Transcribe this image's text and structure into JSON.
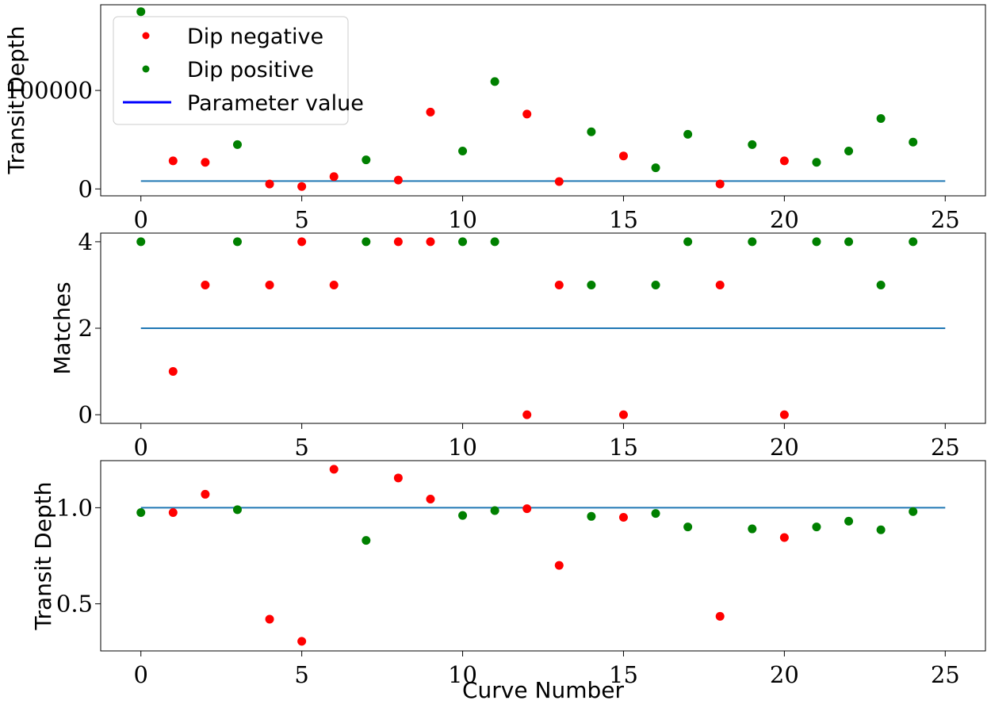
{
  "chart_data": [
    {
      "type": "scatter",
      "title": "",
      "xlabel": "",
      "ylabel": "Transit Depth",
      "xlim": [
        -1.25,
        26.25
      ],
      "ylim": [
        -7000,
        187000
      ],
      "xticks": [
        0,
        5,
        10,
        15,
        20,
        25
      ],
      "xtick_labels": [
        "0",
        "5",
        "10",
        "15",
        "20",
        "25"
      ],
      "yticks": [
        0,
        100000
      ],
      "ytick_labels": [
        "0",
        "100000"
      ],
      "series": [
        {
          "name": "Dip negative",
          "color": "#ff0000",
          "x": [
            1,
            2,
            4,
            5,
            6,
            8,
            9,
            12,
            13,
            15,
            18,
            20
          ],
          "y": [
            28500,
            27000,
            5000,
            2500,
            12500,
            9000,
            78000,
            76000,
            7500,
            33500,
            5000,
            28500
          ]
        },
        {
          "name": "Dip positive",
          "color": "#008000",
          "x": [
            0,
            3,
            7,
            10,
            11,
            14,
            16,
            17,
            19,
            21,
            22,
            23,
            24
          ],
          "y": [
            180000,
            45000,
            29500,
            38500,
            109000,
            58000,
            21500,
            55500,
            45000,
            27000,
            38500,
            71500,
            47500
          ]
        }
      ],
      "reference_line": {
        "name": "Parameter value",
        "x": [
          0,
          25
        ],
        "y": [
          8000,
          8000
        ],
        "color": "#1f77b4"
      },
      "legend": {
        "placement": "upper-left",
        "entries": [
          {
            "label": "Dip negative",
            "color": "#ff0000",
            "marker": "dot"
          },
          {
            "label": "Dip positive",
            "color": "#008000",
            "marker": "dot"
          },
          {
            "label": "Parameter value",
            "color": "#0000ff",
            "marker": "line"
          }
        ]
      }
    },
    {
      "type": "scatter",
      "title": "",
      "xlabel": "",
      "ylabel": "Matches",
      "xlim": [
        -1.25,
        26.25
      ],
      "ylim": [
        -0.2,
        4.2
      ],
      "xticks": [
        0,
        5,
        10,
        15,
        20,
        25
      ],
      "xtick_labels": [
        "0",
        "5",
        "10",
        "15",
        "20",
        "25"
      ],
      "yticks": [
        0,
        2,
        4
      ],
      "ytick_labels": [
        "0",
        "2",
        "4"
      ],
      "series": [
        {
          "name": "Dip negative",
          "color": "#ff0000",
          "x": [
            1,
            2,
            4,
            5,
            6,
            8,
            9,
            12,
            13,
            15,
            18,
            20
          ],
          "y": [
            1,
            3,
            3,
            4,
            3,
            4,
            4,
            0,
            3,
            0,
            3,
            0
          ]
        },
        {
          "name": "Dip positive",
          "color": "#008000",
          "x": [
            0,
            3,
            7,
            10,
            11,
            14,
            16,
            17,
            19,
            21,
            22,
            23,
            24
          ],
          "y": [
            4,
            4,
            4,
            4,
            4,
            3,
            3,
            4,
            4,
            4,
            4,
            3,
            4
          ]
        }
      ],
      "reference_line": {
        "name": "Parameter value",
        "x": [
          0,
          25
        ],
        "y": [
          2,
          2
        ],
        "color": "#1f77b4"
      }
    },
    {
      "type": "scatter",
      "title": "",
      "xlabel": "Curve Number",
      "ylabel": "Transit Depth",
      "xlim": [
        -1.25,
        26.25
      ],
      "ylim": [
        0.255,
        1.245
      ],
      "xticks": [
        0,
        5,
        10,
        15,
        20,
        25
      ],
      "xtick_labels": [
        "0",
        "5",
        "10",
        "15",
        "20",
        "25"
      ],
      "yticks": [
        0.5,
        1.0
      ],
      "ytick_labels": [
        "0.5",
        "1.0"
      ],
      "series": [
        {
          "name": "Dip negative",
          "color": "#ff0000",
          "x": [
            1,
            2,
            4,
            5,
            6,
            8,
            9,
            12,
            13,
            15,
            18,
            20
          ],
          "y": [
            0.975,
            1.07,
            0.42,
            0.305,
            1.2,
            1.155,
            1.045,
            0.995,
            0.7,
            0.95,
            0.435,
            0.845
          ]
        },
        {
          "name": "Dip positive",
          "color": "#008000",
          "x": [
            0,
            3,
            7,
            10,
            11,
            14,
            16,
            17,
            19,
            21,
            22,
            23,
            24
          ],
          "y": [
            0.975,
            0.99,
            0.83,
            0.96,
            0.985,
            0.955,
            0.97,
            0.9,
            0.89,
            0.9,
            0.93,
            0.885,
            0.98
          ]
        }
      ],
      "reference_line": {
        "name": "Parameter value",
        "x": [
          0,
          25
        ],
        "y": [
          1.0,
          1.0
        ],
        "color": "#1f77b4"
      }
    }
  ]
}
